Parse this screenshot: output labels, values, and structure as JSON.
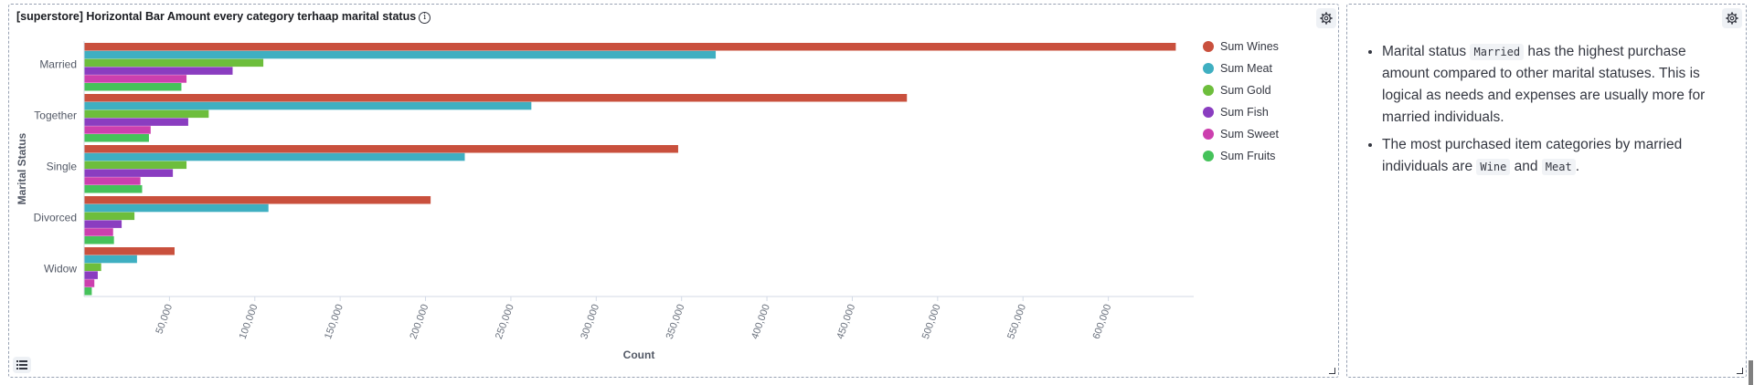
{
  "chart_panel": {
    "title": "[superstore] Horizontal Bar Amount every category terhaap marital status",
    "info_icon": "info-icon",
    "settings_icon": "gear-icon",
    "legend_toggle_icon": "list-icon"
  },
  "chart_data": {
    "type": "bar",
    "orientation": "horizontal",
    "categories": [
      "Married",
      "Together",
      "Single",
      "Divorced",
      "Widow"
    ],
    "series": [
      {
        "name": "Sum Wines",
        "color": "#c9503d",
        "values": [
          639500,
          482000,
          348000,
          203000,
          53000
        ]
      },
      {
        "name": "Sum Meat",
        "color": "#3fafc1",
        "values": [
          370000,
          262000,
          223000,
          108000,
          31000
        ]
      },
      {
        "name": "Sum Gold",
        "color": "#6dbe3c",
        "values": [
          105000,
          73000,
          60000,
          29500,
          10000
        ]
      },
      {
        "name": "Sum Fish",
        "color": "#8a3dc0",
        "values": [
          87000,
          61000,
          52000,
          22000,
          8000
        ]
      },
      {
        "name": "Sum Sweet",
        "color": "#cc3fae",
        "values": [
          60000,
          39000,
          33000,
          17000,
          6000
        ]
      },
      {
        "name": "Sum Fruits",
        "color": "#45c25a",
        "values": [
          57000,
          38000,
          34000,
          17500,
          4500
        ]
      }
    ],
    "xlim": [
      0,
      650000
    ],
    "xticks": [
      50000,
      100000,
      150000,
      200000,
      250000,
      300000,
      350000,
      400000,
      450000,
      500000,
      550000,
      600000
    ],
    "xtick_labels": [
      "50,000",
      "100,000",
      "150,000",
      "200,000",
      "250,000",
      "300,000",
      "350,000",
      "400,000",
      "450,000",
      "500,000",
      "550,000",
      "600,000"
    ],
    "xlabel": "Count",
    "ylabel": "Marital Status",
    "legend_position": "right",
    "grid": false
  },
  "text_panel": {
    "settings_icon": "gear-icon",
    "bullets": [
      {
        "text_1": "Marital status ",
        "code_1": "Married",
        "text_2": " has the highest purchase amount compared to other marital statuses. This is logical as needs and expenses are usually more for married individuals."
      },
      {
        "text_1": "The most purchased item categories by married individuals are ",
        "code_1": "Wine",
        "text_2": " and ",
        "code_2": "Meat",
        "text_3": "."
      }
    ]
  }
}
